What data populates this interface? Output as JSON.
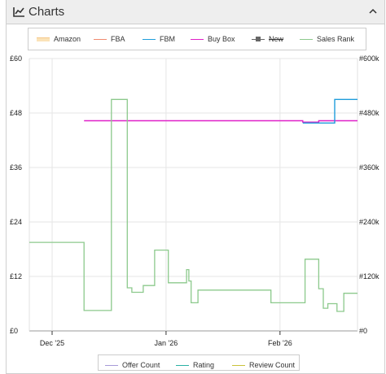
{
  "panel": {
    "title": "Charts",
    "icons": {
      "chart": "line-chart-icon",
      "collapse": "chevron-up-icon"
    }
  },
  "legend": {
    "items": [
      {
        "label": "Amazon",
        "color": "#f5c78a",
        "style": "area"
      },
      {
        "label": "FBA",
        "color": "#f08a6f",
        "style": "line"
      },
      {
        "label": "FBM",
        "color": "#1f9ddb",
        "style": "line"
      },
      {
        "label": "Buy Box",
        "color": "#e020c8",
        "style": "line"
      },
      {
        "label": "New",
        "color": "#666666",
        "style": "marker",
        "disabled": true
      },
      {
        "label": "Sales Rank",
        "color": "#8cc98c",
        "style": "line"
      }
    ]
  },
  "legend2": {
    "items": [
      {
        "label": "Offer Count",
        "color": "#a79bd8"
      },
      {
        "label": "Rating",
        "color": "#2ab1a5"
      },
      {
        "label": "Review Count",
        "color": "#c9c23a"
      }
    ]
  },
  "chart_data": {
    "type": "line",
    "x_ticks": [
      "Dec '25",
      "Jan '26",
      "Feb '26"
    ],
    "y_left_ticks": [
      "£0",
      "£12",
      "£24",
      "£36",
      "£48",
      "£60"
    ],
    "y_right_ticks": [
      "#0",
      "#120k",
      "#240k",
      "#360k",
      "#480k",
      "#600k"
    ],
    "y_left_range": [
      0,
      60
    ],
    "y_right_range": [
      0,
      600000
    ],
    "x_range_days": [
      -10,
      134
    ],
    "x_tick_days": [
      0,
      50,
      100
    ],
    "grid": true,
    "series": [
      {
        "name": "Buy Box",
        "color": "#e020c8",
        "axis": "left",
        "points": [
          [
            14,
            46.3
          ],
          [
            110,
            46.3
          ],
          [
            110,
            46.0
          ],
          [
            117,
            46.0
          ],
          [
            117,
            46.3
          ],
          [
            134,
            46.3
          ]
        ]
      },
      {
        "name": "FBM",
        "color": "#1f9ddb",
        "axis": "left",
        "points": [
          [
            110,
            45.8
          ],
          [
            124,
            45.8
          ],
          [
            124,
            51.0
          ],
          [
            134,
            51.0
          ]
        ]
      },
      {
        "name": "Sales Rank",
        "color": "#8cc98c",
        "axis": "right",
        "points": [
          [
            -10,
            195000
          ],
          [
            14,
            195000
          ],
          [
            14,
            45000
          ],
          [
            26,
            45000
          ],
          [
            26,
            510000
          ],
          [
            33,
            510000
          ],
          [
            33,
            95000
          ],
          [
            35,
            95000
          ],
          [
            35,
            85000
          ],
          [
            40,
            85000
          ],
          [
            40,
            100000
          ],
          [
            45,
            100000
          ],
          [
            45,
            178000
          ],
          [
            51,
            178000
          ],
          [
            51,
            106000
          ],
          [
            59,
            106000
          ],
          [
            59,
            135000
          ],
          [
            60,
            135000
          ],
          [
            60,
            110000
          ],
          [
            61,
            110000
          ],
          [
            61,
            62000
          ],
          [
            64,
            62000
          ],
          [
            64,
            90000
          ],
          [
            96,
            90000
          ],
          [
            96,
            62000
          ],
          [
            111,
            62000
          ],
          [
            111,
            158000
          ],
          [
            117,
            158000
          ],
          [
            117,
            93000
          ],
          [
            119,
            93000
          ],
          [
            119,
            50000
          ],
          [
            121,
            50000
          ],
          [
            121,
            60000
          ],
          [
            125,
            60000
          ],
          [
            125,
            43000
          ],
          [
            128,
            43000
          ],
          [
            128,
            83000
          ],
          [
            134,
            83000
          ]
        ]
      }
    ]
  }
}
